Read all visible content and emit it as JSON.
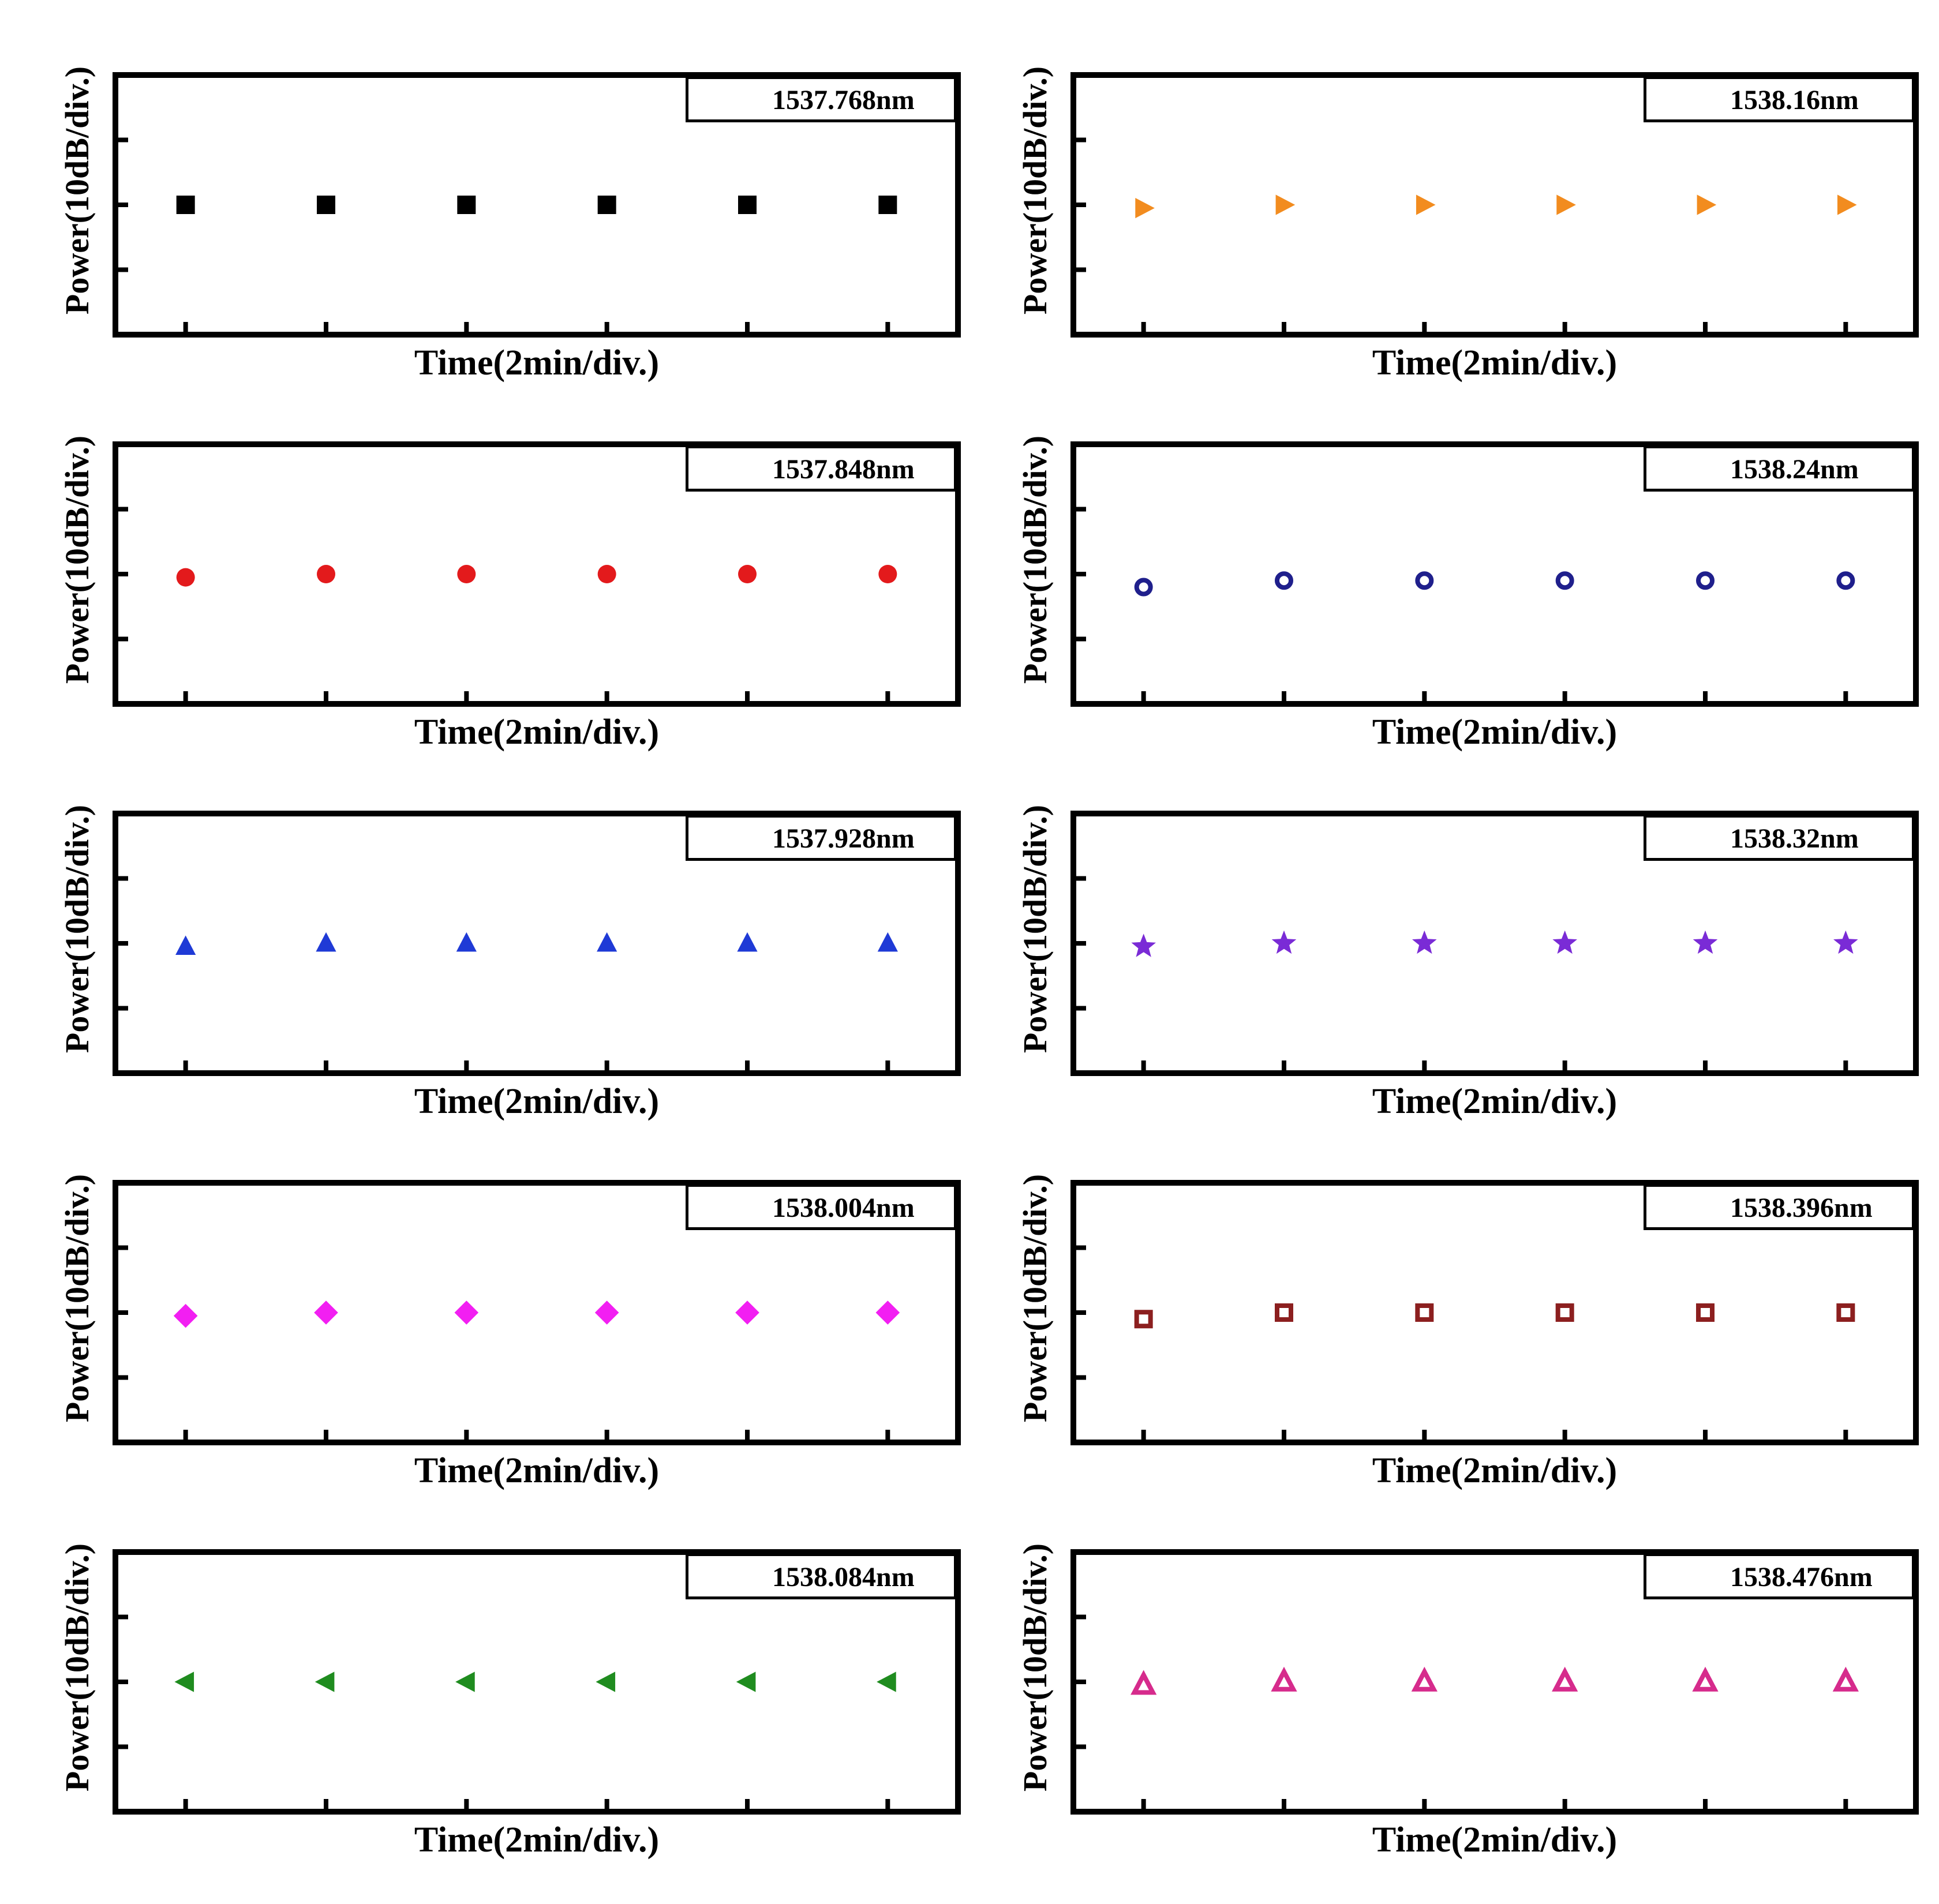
{
  "chart_data": [
    {
      "type": "scatter",
      "series": [
        {
          "name": "1537.768nm",
          "marker": "filled-square",
          "color": "#000000",
          "values": [
            0.0,
            0.0,
            0.0,
            0.0,
            0.0,
            0.0
          ]
        }
      ],
      "x": [
        1,
        2,
        3,
        4,
        5,
        6
      ],
      "xlabel": "Time(2min/div.)",
      "ylabel": "Power(10dB/div.)",
      "ylim": [
        -2,
        2
      ],
      "legend": "top-right"
    },
    {
      "type": "scatter",
      "series": [
        {
          "name": "1538.16nm",
          "marker": "filled-right-triangle",
          "color": "#f28c1f",
          "values": [
            -0.05,
            0.0,
            0.0,
            0.0,
            0.0,
            0.0
          ]
        }
      ],
      "x": [
        1,
        2,
        3,
        4,
        5,
        6
      ],
      "xlabel": "Time(2min/div.)",
      "ylabel": "Power(10dB/div.)",
      "ylim": [
        -2,
        2
      ],
      "legend": "top-right"
    },
    {
      "type": "scatter",
      "series": [
        {
          "name": "1537.848nm",
          "marker": "filled-circle",
          "color": "#e31a1c",
          "values": [
            -0.05,
            0.0,
            0.0,
            0.0,
            0.0,
            0.0
          ]
        }
      ],
      "x": [
        1,
        2,
        3,
        4,
        5,
        6
      ],
      "xlabel": "Time(2min/div.)",
      "ylabel": "Power(10dB/div.)",
      "ylim": [
        -2,
        2
      ],
      "legend": "top-right"
    },
    {
      "type": "scatter",
      "series": [
        {
          "name": "1538.24nm",
          "marker": "open-circle",
          "color": "#1f1f8c",
          "values": [
            -0.2,
            -0.1,
            -0.1,
            -0.1,
            -0.1,
            -0.1
          ]
        }
      ],
      "x": [
        1,
        2,
        3,
        4,
        5,
        6
      ],
      "xlabel": "Time(2min/div.)",
      "ylabel": "Power(10dB/div.)",
      "ylim": [
        -2,
        2
      ],
      "legend": "top-right"
    },
    {
      "type": "scatter",
      "series": [
        {
          "name": "1537.928nm",
          "marker": "filled-triangle",
          "color": "#1f3ad6",
          "values": [
            -0.05,
            0.0,
            0.0,
            0.0,
            0.0,
            0.0
          ]
        }
      ],
      "x": [
        1,
        2,
        3,
        4,
        5,
        6
      ],
      "xlabel": "Time(2min/div.)",
      "ylabel": "Power(10dB/div.)",
      "ylim": [
        -2,
        2
      ],
      "legend": "top-right"
    },
    {
      "type": "scatter",
      "series": [
        {
          "name": "1538.32nm",
          "marker": "filled-star",
          "color": "#7a2bd6",
          "values": [
            -0.05,
            0.0,
            0.0,
            0.0,
            0.0,
            0.0
          ]
        }
      ],
      "x": [
        1,
        2,
        3,
        4,
        5,
        6
      ],
      "xlabel": "Time(2min/div.)",
      "ylabel": "Power(10dB/div.)",
      "ylim": [
        -2,
        2
      ],
      "legend": "top-right"
    },
    {
      "type": "scatter",
      "series": [
        {
          "name": "1538.004nm",
          "marker": "filled-diamond",
          "color": "#f21ff2",
          "values": [
            -0.05,
            0.0,
            0.0,
            0.0,
            0.0,
            0.0
          ]
        }
      ],
      "x": [
        1,
        2,
        3,
        4,
        5,
        6
      ],
      "xlabel": "Time(2min/div.)",
      "ylabel": "Power(10dB/div.)",
      "ylim": [
        -2,
        2
      ],
      "legend": "top-right"
    },
    {
      "type": "scatter",
      "series": [
        {
          "name": "1538.396nm",
          "marker": "open-square",
          "color": "#8c1f1f",
          "values": [
            -0.1,
            0.0,
            0.0,
            0.0,
            0.0,
            0.0
          ]
        }
      ],
      "x": [
        1,
        2,
        3,
        4,
        5,
        6
      ],
      "xlabel": "Time(2min/div.)",
      "ylabel": "Power(10dB/div.)",
      "ylim": [
        -2,
        2
      ],
      "legend": "top-right"
    },
    {
      "type": "scatter",
      "series": [
        {
          "name": "1538.084nm",
          "marker": "filled-left-triangle",
          "color": "#1f8c1f",
          "values": [
            0.0,
            0.0,
            0.0,
            0.0,
            0.0,
            0.0
          ]
        }
      ],
      "x": [
        1,
        2,
        3,
        4,
        5,
        6
      ],
      "xlabel": "Time(2min/div.)",
      "ylabel": "Power(10dB/div.)",
      "ylim": [
        -2,
        2
      ],
      "legend": "top-right"
    },
    {
      "type": "scatter",
      "series": [
        {
          "name": "1538.476nm",
          "marker": "open-triangle",
          "color": "#d62b8c",
          "values": [
            -0.05,
            0.0,
            0.0,
            0.0,
            0.0,
            0.0
          ]
        }
      ],
      "x": [
        1,
        2,
        3,
        4,
        5,
        6
      ],
      "xlabel": "Time(2min/div.)",
      "ylabel": "Power(10dB/div.)",
      "ylim": [
        -2,
        2
      ],
      "legend": "top-right"
    }
  ]
}
